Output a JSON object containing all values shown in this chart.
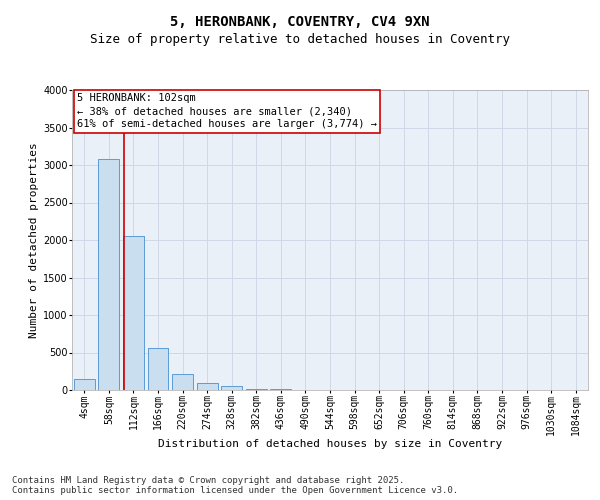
{
  "title_line1": "5, HERONBANK, COVENTRY, CV4 9XN",
  "title_line2": "Size of property relative to detached houses in Coventry",
  "xlabel": "Distribution of detached houses by size in Coventry",
  "ylabel": "Number of detached properties",
  "bar_labels": [
    "4sqm",
    "58sqm",
    "112sqm",
    "166sqm",
    "220sqm",
    "274sqm",
    "328sqm",
    "382sqm",
    "436sqm",
    "490sqm",
    "544sqm",
    "598sqm",
    "652sqm",
    "706sqm",
    "760sqm",
    "814sqm",
    "868sqm",
    "922sqm",
    "976sqm",
    "1030sqm",
    "1084sqm"
  ],
  "bar_values": [
    150,
    3080,
    2050,
    560,
    220,
    90,
    50,
    12,
    8,
    5,
    3,
    2,
    2,
    1,
    1,
    1,
    0,
    0,
    0,
    0,
    0
  ],
  "bar_color": "#c9dff0",
  "bar_edge_color": "#5b9bd5",
  "vline_x_pos": 1.6,
  "vline_color": "#cc0000",
  "annotation_text": "5 HERONBANK: 102sqm\n← 38% of detached houses are smaller (2,340)\n61% of semi-detached houses are larger (3,774) →",
  "annotation_box_color": "#cc0000",
  "ylim": [
    0,
    4000
  ],
  "yticks": [
    0,
    500,
    1000,
    1500,
    2000,
    2500,
    3000,
    3500,
    4000
  ],
  "grid_color": "#d0d8e8",
  "background_color": "#eaf0f8",
  "footnote": "Contains HM Land Registry data © Crown copyright and database right 2025.\nContains public sector information licensed under the Open Government Licence v3.0.",
  "title_fontsize": 10,
  "subtitle_fontsize": 9,
  "axis_label_fontsize": 8,
  "tick_fontsize": 7,
  "annotation_fontsize": 7.5,
  "footnote_fontsize": 6.5
}
